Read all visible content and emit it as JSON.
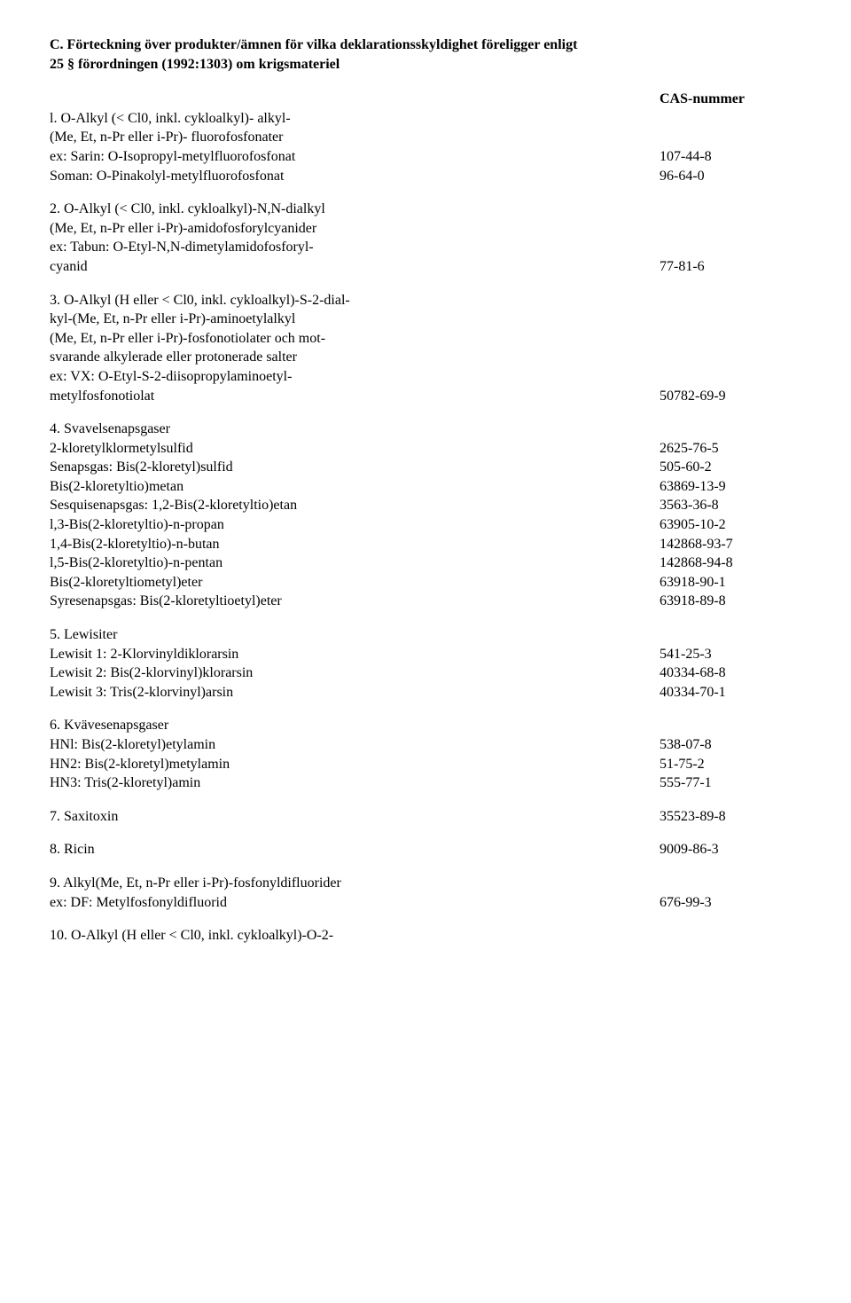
{
  "heading": {
    "line1": "C. Förteckning över produkter/ämnen för vilka deklarationsskyldighet föreligger enligt",
    "line2": "25 § förordningen (1992:1303) om krigsmateriel"
  },
  "cas_header": "CAS-nummer",
  "s1": {
    "l1": "l. O-Alkyl (< Cl0, inkl. cykloalkyl)- alkyl-",
    "l2": "(Me, Et, n-Pr eller i-Pr)- fluorofosfonater",
    "l3_left": "ex: Sarin: O-Isopropyl-metylfluorofosfonat",
    "l3_right": "107-44-8",
    "l4_left": "Soman: O-Pinakolyl-metylfluorofosfonat",
    "l4_right": "96-64-0"
  },
  "s2": {
    "l1": "2. O-Alkyl (< Cl0, inkl. cykloalkyl)-N,N-dialkyl",
    "l2": "(Me, Et, n-Pr eller i-Pr)-amidofosforylcyanider",
    "l3": "ex: Tabun: O-Etyl-N,N-dimetylamidofosforyl-",
    "l4_left": "cyanid",
    "l4_right": "77-81-6"
  },
  "s3": {
    "l1": "3. O-Alkyl (H eller < Cl0, inkl. cykloalkyl)-S-2-dial-",
    "l2": "kyl-(Me, Et, n-Pr eller i-Pr)-aminoetylalkyl",
    "l3": "(Me, Et, n-Pr eller i-Pr)-fosfonotiolater och mot-",
    "l4": "svarande alkylerade eller protonerade salter",
    "l5": "ex: VX: O-Etyl-S-2-diisopropylaminoetyl-",
    "l6_left": "metylfosfonotiolat",
    "l6_right": "50782-69-9"
  },
  "s4": {
    "title": "4. Svavelsenapsgaser",
    "rows": [
      {
        "l": "2-kloretylklormetylsulfid",
        "r": "2625-76-5"
      },
      {
        "l": "Senapsgas: Bis(2-kloretyl)sulfid",
        "r": "505-60-2"
      },
      {
        "l": "Bis(2-kloretyltio)metan",
        "r": "63869-13-9"
      },
      {
        "l": "Sesquisenapsgas: 1,2-Bis(2-kloretyltio)etan",
        "r": "3563-36-8"
      },
      {
        "l": "l,3-Bis(2-kloretyltio)-n-propan",
        "r": "63905-10-2"
      },
      {
        "l": "1,4-Bis(2-kloretyltio)-n-butan",
        "r": "142868-93-7"
      },
      {
        "l": "l,5-Bis(2-kloretyltio)-n-pentan",
        "r": "142868-94-8"
      },
      {
        "l": "Bis(2-kloretyltiometyl)eter",
        "r": "63918-90-1"
      },
      {
        "l": "Syresenapsgas: Bis(2-kloretyltioetyl)eter",
        "r": "63918-89-8"
      }
    ]
  },
  "s5": {
    "title": "5. Lewisiter",
    "rows": [
      {
        "l": "Lewisit 1: 2-Klorvinyldiklorarsin",
        "r": "541-25-3"
      },
      {
        "l": "Lewisit 2: Bis(2-klorvinyl)klorarsin",
        "r": "40334-68-8"
      },
      {
        "l": "Lewisit 3: Tris(2-klorvinyl)arsin",
        "r": "40334-70-1"
      }
    ]
  },
  "s6": {
    "title": "6. Kvävesenapsgaser",
    "rows": [
      {
        "l": "HNl: Bis(2-kloretyl)etylamin",
        "r": "538-07-8"
      },
      {
        "l": "HN2: Bis(2-kloretyl)metylamin",
        "r": "51-75-2"
      },
      {
        "l": "HN3: Tris(2-kloretyl)amin",
        "r": "555-77-1"
      }
    ]
  },
  "s7": {
    "l": "7. Saxitoxin",
    "r": "35523-89-8"
  },
  "s8": {
    "l": "8. Ricin",
    "r": "9009-86-3"
  },
  "s9": {
    "l1": "9. Alkyl(Me, Et, n-Pr eller i-Pr)-fosfonyldifluorider",
    "l2_left": "ex: DF: Metylfosfonyldifluorid",
    "l2_right": "676-99-3"
  },
  "s10": {
    "l1": "10. O-Alkyl (H eller < Cl0, inkl. cykloalkyl)-O-2-"
  }
}
